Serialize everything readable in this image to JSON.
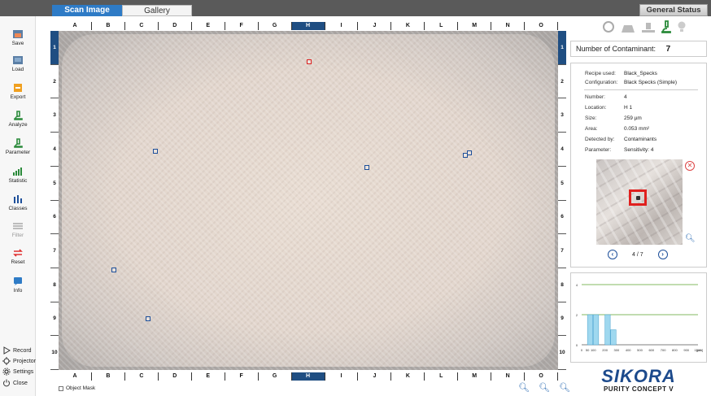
{
  "tabs": {
    "active": "Scan Image",
    "idle": "Gallery"
  },
  "general_status": "General Status",
  "sidebar": {
    "items": [
      {
        "label": "Save",
        "icon": "save-icon"
      },
      {
        "label": "Load",
        "icon": "load-icon"
      },
      {
        "label": "Export",
        "icon": "export-icon"
      },
      {
        "label": "Analyze",
        "icon": "microscope-icon"
      },
      {
        "label": "Parameter",
        "icon": "parameter-icon"
      },
      {
        "label": "Statistic",
        "icon": "statistic-icon"
      },
      {
        "label": "Classes",
        "icon": "classes-icon"
      },
      {
        "label": "Filter",
        "icon": "filter-icon"
      },
      {
        "label": "Reset",
        "icon": "reset-icon"
      },
      {
        "label": "Info",
        "icon": "info-icon"
      }
    ],
    "bottom": [
      {
        "label": "Record",
        "icon": "play-icon"
      },
      {
        "label": "Projector",
        "icon": "projector-icon"
      },
      {
        "label": "Settings",
        "icon": "gear-icon"
      },
      {
        "label": "Close",
        "icon": "power-icon"
      }
    ]
  },
  "grid": {
    "columns": [
      "A",
      "B",
      "C",
      "D",
      "E",
      "F",
      "G",
      "H",
      "I",
      "J",
      "K",
      "L",
      "M",
      "N",
      "O"
    ],
    "selected_column": "H",
    "rows": [
      "1",
      "2",
      "3",
      "4",
      "5",
      "6",
      "7",
      "8",
      "9",
      "10"
    ],
    "selected_row": "1"
  },
  "object_mask": "Object Mask",
  "contaminant": {
    "label": "Number of Contaminant:",
    "count": "7"
  },
  "details": {
    "recipe_label": "Recipe used:",
    "recipe": "Black_Specks",
    "config_label": "Configuration:",
    "config": "Black Specks (Simple)",
    "number_label": "Number:",
    "number": "4",
    "location_label": "Location:",
    "location": "H 1",
    "size_label": "Size:",
    "size": "259 µm",
    "area_label": "Area:",
    "area": "0.053 mm²",
    "detected_label": "Detected by:",
    "detected": "Contaminants",
    "param_label": "Parameter:",
    "param": "Sensitivity: 4",
    "pager": "4 / 7"
  },
  "histogram": {
    "y_ticks": [
      "4",
      "2",
      "0"
    ],
    "x_ticks": [
      "0",
      "50",
      "100",
      "200",
      "300",
      "400",
      "500",
      "600",
      "700",
      "800",
      "900",
      "1000"
    ],
    "x_unit": "[µm]",
    "bars": [
      {
        "x0": 50,
        "x1": 100,
        "v": 2
      },
      {
        "x0": 100,
        "x1": 150,
        "v": 2
      },
      {
        "x0": 200,
        "x1": 250,
        "v": 2
      },
      {
        "x0": 250,
        "x1": 300,
        "v": 1
      }
    ]
  },
  "logo": {
    "brand": "SIKORA",
    "product": "PURITY CONCEPT V"
  },
  "colors": {
    "accent": "#2e7bc6",
    "selection": "#1f4e82",
    "marker": "#1d4f9a",
    "alert": "#e0201e"
  }
}
